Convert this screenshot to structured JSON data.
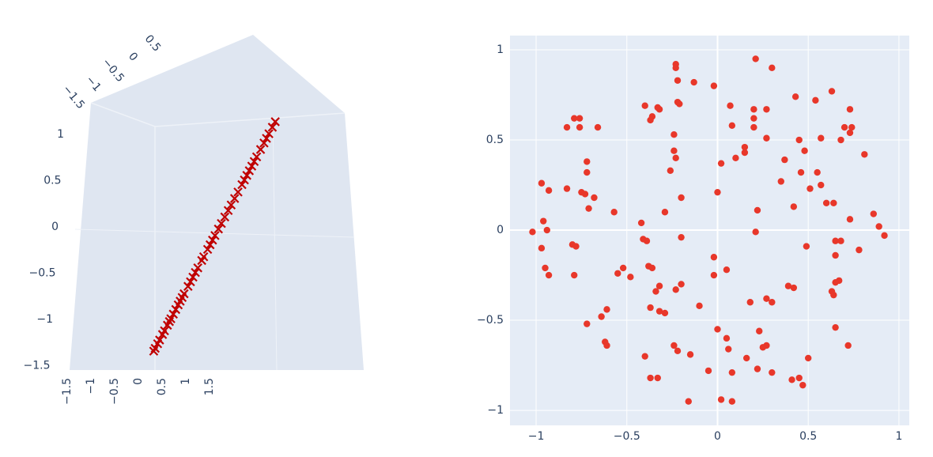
{
  "chart_data": [
    {
      "type": "scatter3d",
      "color": "#c00000",
      "xticks": [
        {
          "value": -1.5,
          "label": "−1.5"
        },
        {
          "value": -1,
          "label": "−1"
        },
        {
          "value": -0.5,
          "label": "−0.5"
        },
        0,
        0.5,
        1,
        1.5
      ],
      "yticks": [
        {
          "value": -1.5,
          "label": "−1.5"
        },
        {
          "value": -1,
          "label": "−1"
        },
        {
          "value": -0.5,
          "label": "−0.5"
        },
        0,
        0.5
      ],
      "zticks": [
        {
          "value": -1.5,
          "label": "−1.5"
        },
        {
          "value": -1,
          "label": "−1"
        },
        {
          "value": -0.5,
          "label": "−0.5"
        },
        0,
        0.5,
        1
      ],
      "x": [
        -1.3,
        -1.27,
        -1.22,
        -1.18,
        -1.12,
        -1.08,
        -1.02,
        -0.98,
        -0.95,
        -0.9,
        -0.85,
        -0.8,
        -0.76,
        -0.72,
        -0.68,
        -0.6,
        -0.55,
        -0.5,
        -0.45,
        -0.4,
        -0.32,
        -0.28,
        -0.2,
        -0.15,
        -0.1,
        -0.05,
        0.02,
        0.08,
        0.15,
        0.22,
        0.28,
        0.35,
        0.42,
        0.5,
        0.55,
        0.6,
        0.65,
        0.7,
        0.75,
        0.8,
        0.88,
        0.95,
        1.0,
        1.05,
        1.12,
        1.18
      ],
      "y": [
        -1.3,
        -1.27,
        -1.22,
        -1.18,
        -1.12,
        -1.08,
        -1.02,
        -0.98,
        -0.95,
        -0.9,
        -0.85,
        -0.8,
        -0.76,
        -0.72,
        -0.68,
        -0.6,
        -0.55,
        -0.5,
        -0.45,
        -0.4,
        -0.32,
        -0.28,
        -0.2,
        -0.15,
        -0.1,
        -0.05,
        0.02,
        0.08,
        0.15,
        0.22,
        0.28,
        0.35,
        0.42,
        0.5,
        0.55,
        0.6,
        0.65,
        0.7,
        0.75,
        0.8,
        0.88,
        0.95,
        1.0,
        1.05,
        1.12,
        1.18
      ],
      "z": [
        -1.3,
        -1.27,
        -1.22,
        -1.18,
        -1.12,
        -1.08,
        -1.02,
        -0.98,
        -0.95,
        -0.9,
        -0.85,
        -0.8,
        -0.76,
        -0.72,
        -0.68,
        -0.6,
        -0.55,
        -0.5,
        -0.45,
        -0.4,
        -0.32,
        -0.28,
        -0.2,
        -0.15,
        -0.1,
        -0.05,
        0.02,
        0.08,
        0.15,
        0.22,
        0.28,
        0.35,
        0.42,
        0.5,
        0.55,
        0.6,
        0.65,
        0.7,
        0.75,
        0.8,
        0.88,
        0.95,
        1.0,
        1.05,
        1.12,
        1.18
      ]
    },
    {
      "type": "scatter",
      "color": "#e8372a",
      "grid": true,
      "xlim": [
        -1.144,
        1.057
      ],
      "ylim": [
        -1.083,
        1.079
      ],
      "xticks": [
        {
          "value": -1,
          "label": "−1"
        },
        {
          "value": -0.5,
          "label": "−0.5"
        },
        0,
        0.5,
        1
      ],
      "yticks": [
        {
          "value": -1,
          "label": "−1"
        },
        {
          "value": -0.5,
          "label": "−0.5"
        },
        0,
        0.5,
        1
      ],
      "x": [
        0.21,
        0.3,
        -0.23,
        -0.23,
        -0.22,
        -0.13,
        -0.02,
        0.63,
        0.43,
        0.54,
        -0.22,
        -0.21,
        -0.4,
        -0.33,
        -0.32,
        0.07,
        0.2,
        0.27,
        0.73,
        -0.36,
        -0.37,
        -0.79,
        -0.76,
        -0.83,
        -0.76,
        -0.66,
        0.08,
        0.2,
        0.2,
        0.7,
        0.74,
        0.73,
        -0.24,
        0.27,
        0.57,
        0.45,
        0.68,
        0.48,
        0.15,
        0.15,
        0.1,
        -0.24,
        -0.23,
        0.81,
        -0.72,
        0.37,
        0.02,
        -0.72,
        -0.26,
        0.46,
        0.55,
        -0.97,
        -0.93,
        -0.83,
        -0.75,
        -0.73,
        0.35,
        0.57,
        0.51,
        -0.2,
        0.0,
        -0.68,
        0.42,
        0.6,
        0.64,
        -0.71,
        -0.57,
        -0.29,
        0.22,
        -0.96,
        -0.42,
        0.73,
        0.86,
        0.89,
        -1.02,
        -0.94,
        0.92,
        0.21,
        -0.41,
        -0.39,
        -0.2,
        0.65,
        0.68,
        -0.8,
        -0.78,
        -0.97,
        0.49,
        0.78,
        0.65,
        -0.02,
        -0.38,
        -0.36,
        -0.95,
        -0.93,
        -0.52,
        -0.55,
        -0.48,
        0.05,
        -0.02,
        -0.79,
        0.67,
        0.65,
        -0.32,
        -0.2,
        0.39,
        0.42,
        -0.34,
        -0.23,
        0.63,
        0.64,
        0.27,
        0.3,
        0.18,
        -0.1,
        -0.37,
        -0.61,
        -0.64,
        -0.32,
        -0.29,
        -0.72,
        0.0,
        0.23,
        0.65,
        0.05,
        -0.62,
        -0.61,
        -0.24,
        0.25,
        0.27,
        0.72,
        0.06,
        -0.22,
        -0.15,
        -0.4,
        0.16,
        0.5,
        -0.05,
        0.08,
        0.22,
        0.3,
        -0.37,
        -0.33,
        0.41,
        0.45,
        0.47,
        -0.16,
        0.02,
        0.08
      ],
      "y": [
        0.95,
        0.9,
        0.92,
        0.9,
        0.83,
        0.82,
        0.8,
        0.77,
        0.74,
        0.72,
        0.71,
        0.7,
        0.69,
        0.68,
        0.67,
        0.69,
        0.67,
        0.67,
        0.67,
        0.63,
        0.61,
        0.62,
        0.62,
        0.57,
        0.57,
        0.57,
        0.58,
        0.62,
        0.57,
        0.57,
        0.57,
        0.54,
        0.53,
        0.51,
        0.51,
        0.5,
        0.5,
        0.44,
        0.46,
        0.43,
        0.4,
        0.44,
        0.4,
        0.42,
        0.38,
        0.39,
        0.37,
        0.32,
        0.33,
        0.32,
        0.32,
        0.26,
        0.22,
        0.23,
        0.21,
        0.2,
        0.27,
        0.25,
        0.23,
        0.18,
        0.21,
        0.18,
        0.13,
        0.15,
        0.15,
        0.12,
        0.1,
        0.1,
        0.11,
        0.05,
        0.04,
        0.06,
        0.09,
        0.02,
        -0.01,
        0.0,
        -0.03,
        -0.01,
        -0.05,
        -0.06,
        -0.04,
        -0.06,
        -0.06,
        -0.08,
        -0.09,
        -0.1,
        -0.09,
        -0.11,
        -0.14,
        -0.15,
        -0.2,
        -0.21,
        -0.21,
        -0.25,
        -0.21,
        -0.24,
        -0.26,
        -0.22,
        -0.25,
        -0.25,
        -0.28,
        -0.29,
        -0.31,
        -0.3,
        -0.31,
        -0.32,
        -0.34,
        -0.33,
        -0.34,
        -0.36,
        -0.38,
        -0.4,
        -0.4,
        -0.42,
        -0.43,
        -0.44,
        -0.48,
        -0.45,
        -0.46,
        -0.52,
        -0.55,
        -0.56,
        -0.54,
        -0.6,
        -0.62,
        -0.64,
        -0.64,
        -0.65,
        -0.64,
        -0.64,
        -0.66,
        -0.67,
        -0.69,
        -0.7,
        -0.71,
        -0.71,
        -0.78,
        -0.79,
        -0.77,
        -0.79,
        -0.82,
        -0.82,
        -0.83,
        -0.82,
        -0.86,
        -0.95,
        -0.94,
        -0.95
      ]
    }
  ]
}
